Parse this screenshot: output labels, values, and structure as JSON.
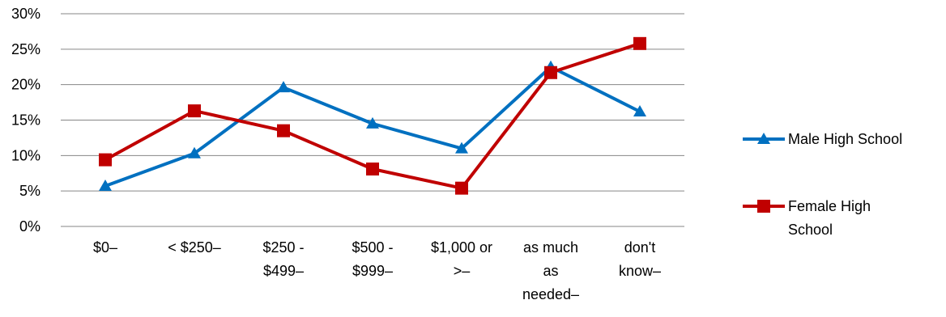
{
  "chart_data": {
    "type": "line",
    "categories": [
      [
        "$0–"
      ],
      [
        "< $250–"
      ],
      [
        "$250 -",
        "$499–"
      ],
      [
        "$500 -",
        "$999–"
      ],
      [
        "$1,000 or",
        ">–"
      ],
      [
        "as much",
        "as",
        "needed–"
      ],
      [
        "don't",
        "know–"
      ]
    ],
    "y_ticks": [
      "0%",
      "5%",
      "10%",
      "15%",
      "20%",
      "25%",
      "30%"
    ],
    "ylim": [
      0,
      30
    ],
    "series": [
      {
        "name": "Male High School",
        "color": "#0070C0",
        "marker": "triangle",
        "values": [
          5.7,
          10.3,
          19.6,
          14.5,
          11.0,
          22.5,
          16.2
        ]
      },
      {
        "name": "Female High School",
        "color": "#C00000",
        "marker": "square",
        "values": [
          9.4,
          16.3,
          13.5,
          8.1,
          5.4,
          21.7,
          25.8
        ]
      }
    ],
    "legend": {
      "position": "right",
      "entries": [
        [
          "Male High School"
        ],
        [
          "Female High",
          "School"
        ]
      ]
    },
    "grid": true
  }
}
